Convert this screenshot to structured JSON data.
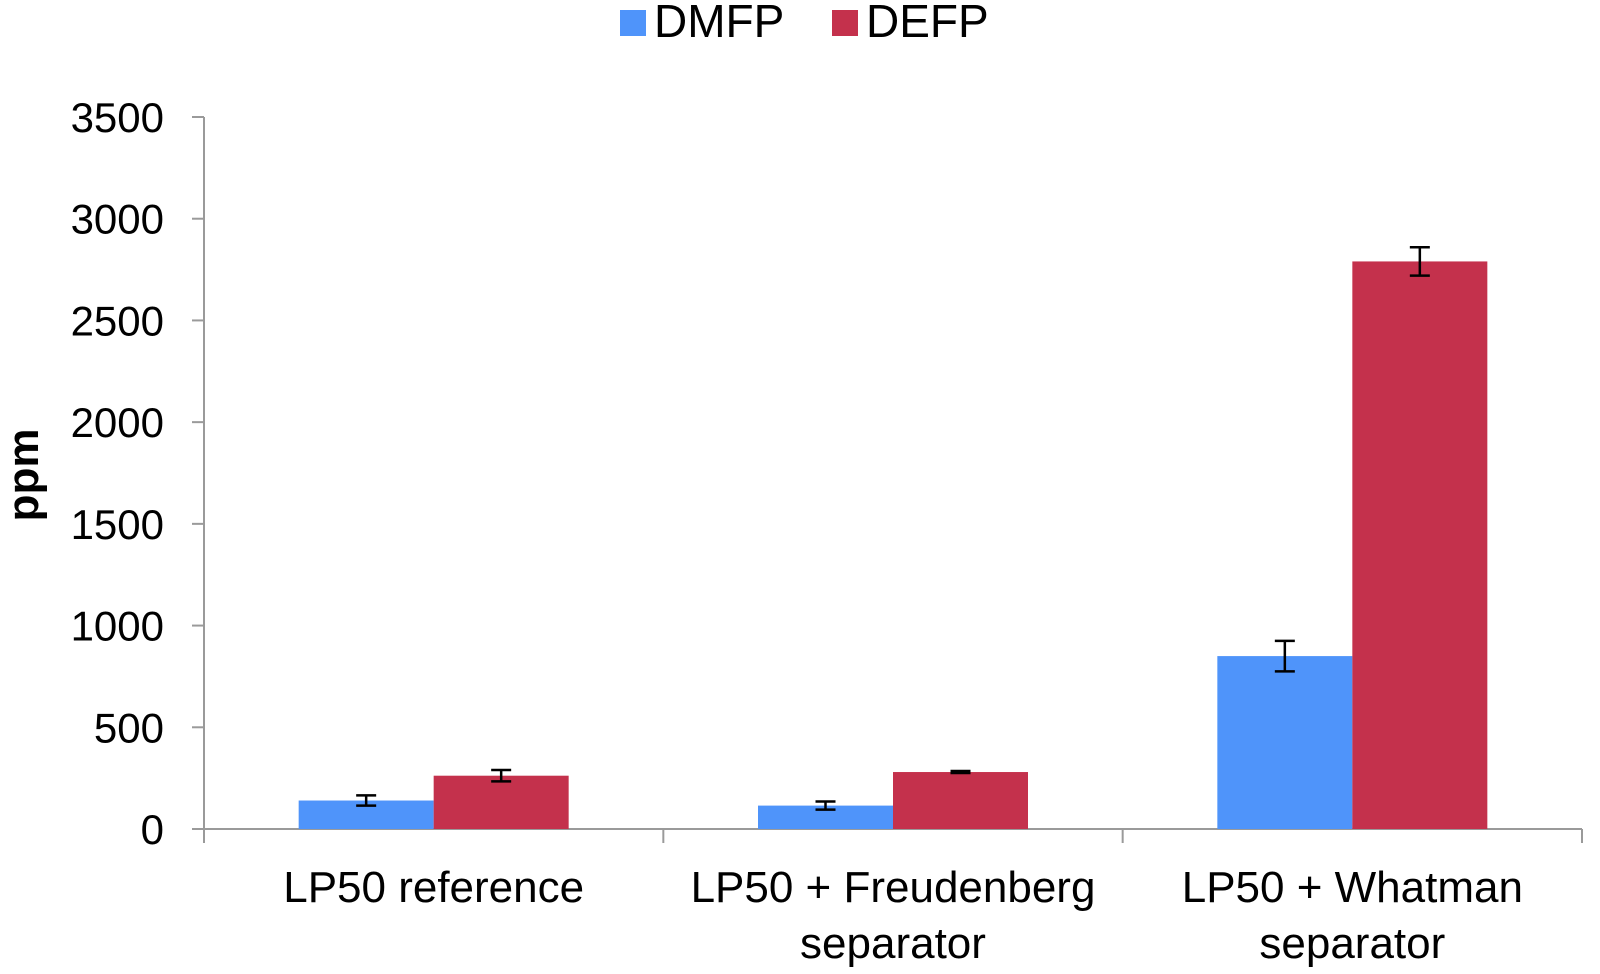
{
  "chart_data": {
    "type": "bar",
    "title": "",
    "ylabel": "ppm",
    "xlabel": "",
    "ylim": [
      0,
      3500
    ],
    "yticks": [
      0,
      500,
      1000,
      1500,
      2000,
      2500,
      3000,
      3500
    ],
    "grid": false,
    "legend_position": "top-center",
    "categories": [
      [
        "LP50 reference"
      ],
      [
        "LP50 + Freudenberg",
        "separator"
      ],
      [
        "LP50 + Whatman",
        "separator"
      ]
    ],
    "series": [
      {
        "name": "DMFP",
        "color": "#4f94fa",
        "values": [
          140,
          115,
          850
        ],
        "errors": [
          25,
          20,
          75
        ]
      },
      {
        "name": "DEFP",
        "color": "#c4314c",
        "values": [
          262,
          280,
          2790
        ],
        "errors": [
          28,
          5,
          70
        ]
      }
    ]
  }
}
